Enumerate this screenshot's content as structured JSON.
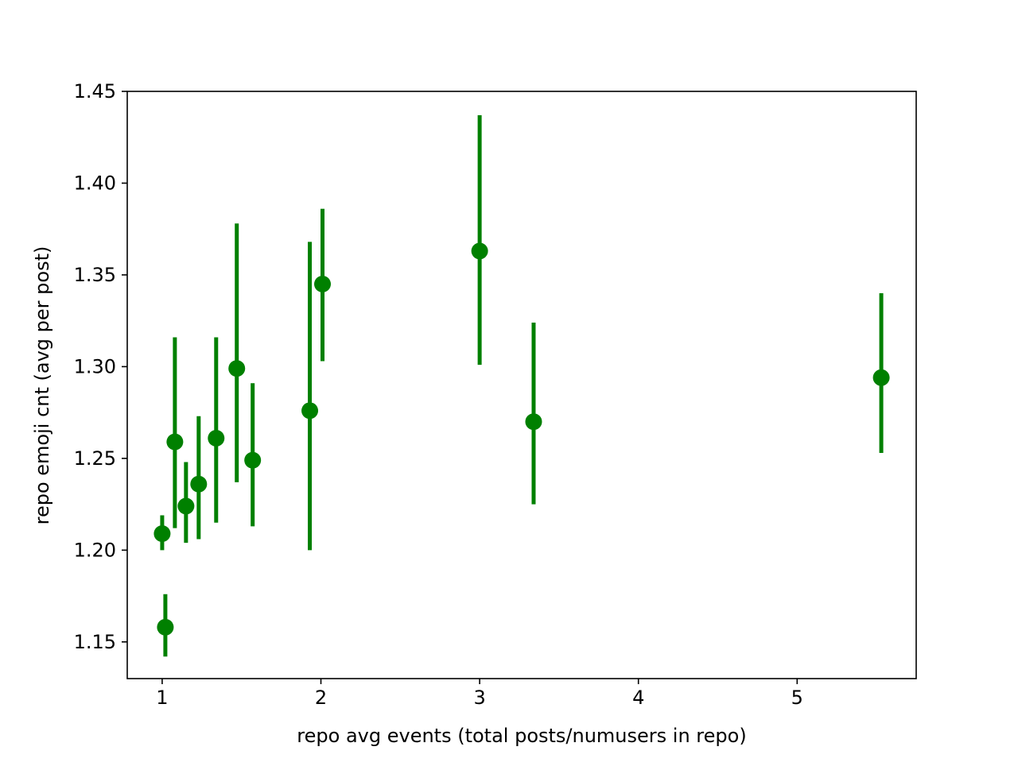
{
  "chart_data": {
    "type": "scatter",
    "title": "",
    "xlabel": "repo avg events (total posts/numusers in repo)",
    "ylabel": "repo emoji cnt (avg per post)",
    "xlim": [
      0.78,
      5.75
    ],
    "ylim": [
      1.13,
      1.45
    ],
    "xticks": [
      {
        "value": 1,
        "label": "1"
      },
      {
        "value": 2,
        "label": "2"
      },
      {
        "value": 3,
        "label": "3"
      },
      {
        "value": 4,
        "label": "4"
      },
      {
        "value": 5,
        "label": "5"
      }
    ],
    "yticks": [
      {
        "value": 1.15,
        "label": "1.15"
      },
      {
        "value": 1.2,
        "label": "1.20"
      },
      {
        "value": 1.25,
        "label": "1.25"
      },
      {
        "value": 1.3,
        "label": "1.30"
      },
      {
        "value": 1.35,
        "label": "1.35"
      },
      {
        "value": 1.4,
        "label": "1.40"
      },
      {
        "value": 1.45,
        "label": "1.45"
      }
    ],
    "grid": false,
    "color": "#008000",
    "series": [
      {
        "points": [
          {
            "x": 1.0,
            "y": 1.209,
            "ylow": 1.2,
            "yhigh": 1.219
          },
          {
            "x": 1.02,
            "y": 1.158,
            "ylow": 1.142,
            "yhigh": 1.176
          },
          {
            "x": 1.08,
            "y": 1.259,
            "ylow": 1.212,
            "yhigh": 1.316
          },
          {
            "x": 1.15,
            "y": 1.224,
            "ylow": 1.204,
            "yhigh": 1.248
          },
          {
            "x": 1.23,
            "y": 1.236,
            "ylow": 1.206,
            "yhigh": 1.273
          },
          {
            "x": 1.34,
            "y": 1.261,
            "ylow": 1.215,
            "yhigh": 1.316
          },
          {
            "x": 1.47,
            "y": 1.299,
            "ylow": 1.237,
            "yhigh": 1.378
          },
          {
            "x": 1.57,
            "y": 1.249,
            "ylow": 1.213,
            "yhigh": 1.291
          },
          {
            "x": 1.93,
            "y": 1.276,
            "ylow": 1.2,
            "yhigh": 1.368
          },
          {
            "x": 2.01,
            "y": 1.345,
            "ylow": 1.303,
            "yhigh": 1.386
          },
          {
            "x": 3.0,
            "y": 1.363,
            "ylow": 1.301,
            "yhigh": 1.437
          },
          {
            "x": 3.34,
            "y": 1.27,
            "ylow": 1.225,
            "yhigh": 1.324
          },
          {
            "x": 5.53,
            "y": 1.294,
            "ylow": 1.253,
            "yhigh": 1.34
          }
        ]
      }
    ]
  }
}
